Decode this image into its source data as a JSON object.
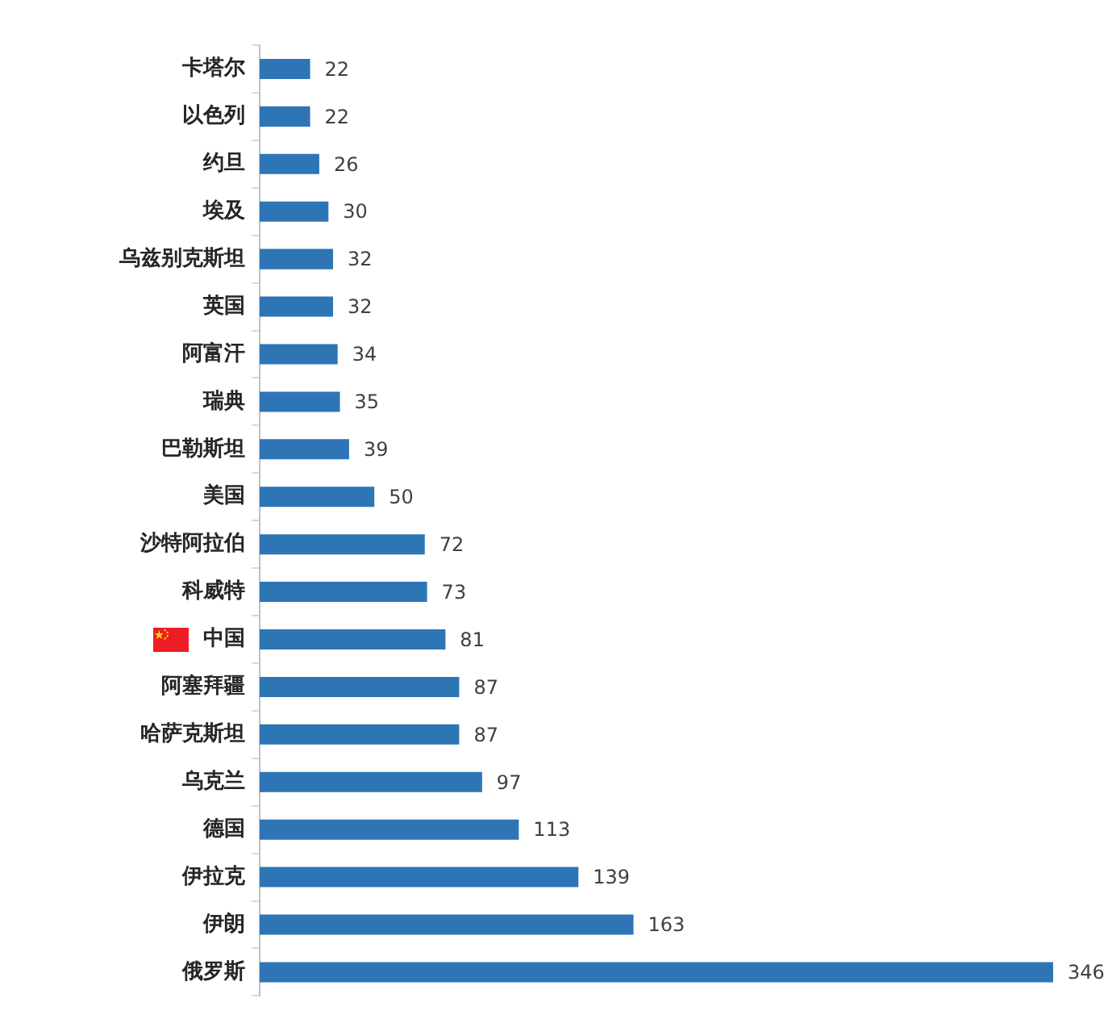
{
  "chart_data": {
    "type": "bar",
    "orientation": "horizontal",
    "categories": [
      "卡塔尔",
      "以色列",
      "约旦",
      "埃及",
      "乌兹别克斯坦",
      "英国",
      "阿富汗",
      "瑞典",
      "巴勒斯坦",
      "美国",
      "沙特阿拉伯",
      "科威特",
      "中国",
      "阿塞拜疆",
      "哈萨克斯坦",
      "乌克兰",
      "德国",
      "伊拉克",
      "伊朗",
      "俄罗斯"
    ],
    "values": [
      22,
      22,
      26,
      30,
      32,
      32,
      34,
      35,
      39,
      50,
      72,
      73,
      81,
      87,
      87,
      97,
      113,
      139,
      163,
      346
    ],
    "color": "#2e75b6",
    "data_labels": true,
    "tick_labels": "y"
  }
}
